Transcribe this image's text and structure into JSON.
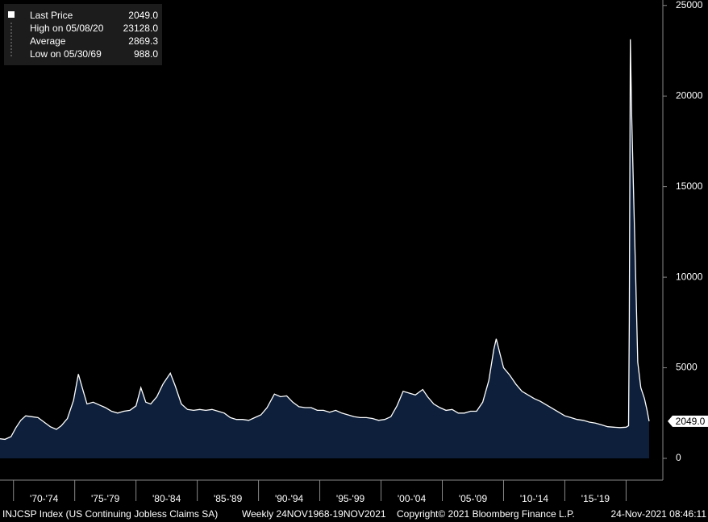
{
  "chart_data": {
    "type": "area",
    "legend": [
      {
        "label": "Last Price",
        "value": "2049.0"
      },
      {
        "label": "High on 05/08/20",
        "value": "23128.0"
      },
      {
        "label": "Average",
        "value": "2869.3"
      },
      {
        "label": "Low on 05/30/69",
        "value": "988.0"
      }
    ],
    "footer": [
      "INJCSP Index (US Continuing Jobless Claims SA)",
      "Weekly 24NOV1968-19NOV2021",
      "Copyright© 2021 Bloomberg Finance L.P.",
      "24-Nov-2021 08:46:11"
    ],
    "color": "#0d1f3a",
    "line_color": "#ffffff",
    "xlim": [
      1968.9,
      2023
    ],
    "xticks": [
      1970,
      1975,
      1980,
      1985,
      1990,
      1995,
      2000,
      2005,
      2010,
      2015,
      2020
    ],
    "xtick_labels": [
      "'70-'74",
      "'75-'79",
      "'80-'84",
      "'85-'89",
      "'90-'94",
      "'95-'99",
      "'00-'04",
      "'05-'09",
      "'10-'14",
      "'15-'19"
    ],
    "ylim": [
      -1200,
      25300
    ],
    "yticks": [
      0,
      5000,
      10000,
      15000,
      20000,
      25000
    ],
    "x": [
      1968.9,
      1969.3,
      1969.8,
      1970.2,
      1970.6,
      1971.0,
      1971.5,
      1972.0,
      1972.5,
      1973.0,
      1973.5,
      1973.9,
      1974.4,
      1974.9,
      1975.3,
      1975.7,
      1976.0,
      1976.5,
      1977.0,
      1977.5,
      1978.0,
      1978.5,
      1979.0,
      1979.5,
      1980.0,
      1980.4,
      1980.8,
      1981.2,
      1981.7,
      1982.2,
      1982.8,
      1983.2,
      1983.7,
      1984.2,
      1984.7,
      1985.2,
      1985.7,
      1986.2,
      1986.7,
      1987.2,
      1987.7,
      1988.2,
      1988.7,
      1989.2,
      1989.7,
      1990.2,
      1990.7,
      1991.3,
      1991.8,
      1992.3,
      1992.8,
      1993.3,
      1993.8,
      1994.3,
      1994.8,
      1995.3,
      1995.8,
      1996.3,
      1996.8,
      1997.3,
      1997.8,
      1998.3,
      1998.8,
      1999.3,
      1999.8,
      2000.3,
      2000.8,
      2001.3,
      2001.8,
      2002.3,
      2002.8,
      2003.4,
      2003.8,
      2004.3,
      2004.8,
      2005.3,
      2005.8,
      2006.3,
      2006.8,
      2007.3,
      2007.8,
      2008.3,
      2008.8,
      2009.2,
      2009.4,
      2009.7,
      2010.0,
      2010.5,
      2011.0,
      2011.5,
      2012.0,
      2012.5,
      2013.0,
      2013.5,
      2014.0,
      2014.5,
      2015.0,
      2015.5,
      2016.0,
      2016.5,
      2017.0,
      2017.5,
      2018.0,
      2018.5,
      2019.0,
      2019.5,
      2020.0,
      2020.2,
      2020.26,
      2020.35,
      2020.45,
      2020.6,
      2020.8,
      2020.95,
      2021.2,
      2021.5,
      2021.7,
      2021.88
    ],
    "values": [
      1080,
      1050,
      1200,
      1700,
      2100,
      2350,
      2300,
      2250,
      2000,
      1750,
      1600,
      1800,
      2200,
      3200,
      4650,
      3700,
      3000,
      3100,
      2950,
      2800,
      2600,
      2500,
      2600,
      2650,
      2900,
      3900,
      3100,
      3000,
      3400,
      4100,
      4700,
      4000,
      3000,
      2700,
      2650,
      2700,
      2650,
      2700,
      2600,
      2500,
      2250,
      2150,
      2150,
      2100,
      2250,
      2400,
      2800,
      3550,
      3400,
      3450,
      3100,
      2850,
      2800,
      2800,
      2650,
      2650,
      2550,
      2650,
      2500,
      2400,
      2300,
      2250,
      2250,
      2200,
      2100,
      2150,
      2300,
      2900,
      3700,
      3600,
      3500,
      3800,
      3400,
      3000,
      2800,
      2650,
      2700,
      2500,
      2500,
      2600,
      2600,
      3100,
      4300,
      6000,
      6600,
      5800,
      5000,
      4600,
      4100,
      3700,
      3500,
      3300,
      3150,
      2950,
      2750,
      2550,
      2350,
      2250,
      2150,
      2100,
      2000,
      1950,
      1850,
      1750,
      1720,
      1700,
      1720,
      1800,
      7500,
      23128,
      19000,
      15000,
      9500,
      5300,
      3900,
      3300,
      2700,
      2049
    ]
  }
}
